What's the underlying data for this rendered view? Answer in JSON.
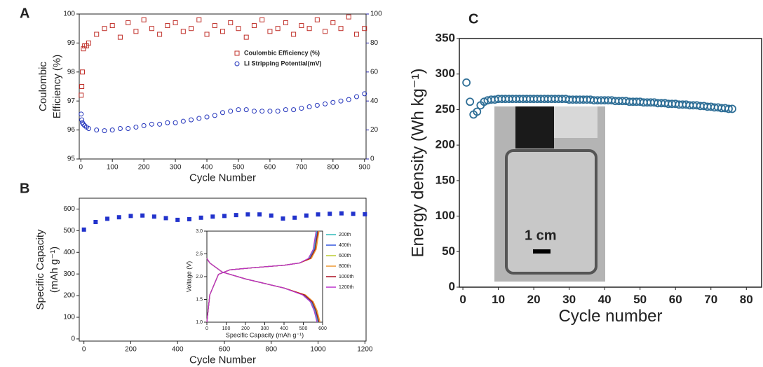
{
  "chart_data": [
    {
      "type": "scatter",
      "panel": "A",
      "x_label": "Cycle Number",
      "y_label": [
        "Coulombic",
        "Efficiency (%)"
      ],
      "xlim": [
        -5,
        905
      ],
      "xticks": [
        0,
        100,
        200,
        300,
        400,
        500,
        600,
        700,
        800,
        900
      ],
      "ylim": [
        95,
        100
      ],
      "yticks": [
        95,
        96,
        97,
        98,
        99,
        100
      ],
      "y2lim": [
        0,
        100
      ],
      "y2ticks": [
        0,
        20,
        40,
        60,
        80,
        100
      ],
      "y2color": "#2222aa",
      "x": [
        1,
        3,
        5,
        8,
        12,
        18,
        25,
        50,
        75,
        100,
        125,
        150,
        175,
        200,
        225,
        250,
        275,
        300,
        325,
        350,
        375,
        400,
        425,
        450,
        475,
        500,
        525,
        550,
        575,
        600,
        625,
        650,
        675,
        700,
        725,
        750,
        775,
        800,
        825,
        850,
        875,
        900
      ],
      "series": [
        {
          "name": "Coulombic Efficiency (%)",
          "color": "#c0302a",
          "marker": "square",
          "values": [
            97.2,
            97.5,
            98.0,
            98.8,
            98.9,
            98.9,
            99.0,
            99.3,
            99.5,
            99.6,
            99.2,
            99.7,
            99.4,
            99.8,
            99.5,
            99.3,
            99.6,
            99.7,
            99.4,
            99.5,
            99.8,
            99.3,
            99.6,
            99.4,
            99.7,
            99.5,
            99.2,
            99.6,
            99.8,
            99.4,
            99.5,
            99.7,
            99.3,
            99.6,
            99.5,
            99.8,
            99.4,
            99.7,
            99.5,
            99.9,
            99.3,
            99.5
          ]
        },
        {
          "name": "Li Stripping Potential(mV)",
          "color": "#2233bb",
          "marker": "circle",
          "axis": "y2",
          "values": [
            31,
            27,
            25,
            24,
            23,
            22,
            21,
            20,
            19.5,
            20,
            21,
            21,
            22,
            23,
            24,
            24,
            25,
            25,
            26,
            27,
            28,
            29,
            30,
            32,
            33,
            34,
            34,
            33,
            33,
            33,
            33,
            34,
            34,
            35,
            36,
            37,
            38,
            39,
            40,
            41,
            43,
            45
          ]
        }
      ]
    },
    {
      "type": "scatter",
      "panel": "B",
      "x_label": "Cycle Number",
      "y_label": [
        "Specific Capacity",
        "(mAh g⁻¹)"
      ],
      "xlim": [
        -20,
        1205
      ],
      "xticks": [
        0,
        200,
        400,
        600,
        800,
        1000,
        1200
      ],
      "ylim": [
        -10,
        650
      ],
      "yticks": [
        0,
        100,
        200,
        300,
        400,
        500,
        600
      ],
      "x": [
        0,
        50,
        100,
        150,
        200,
        250,
        300,
        350,
        400,
        450,
        500,
        550,
        600,
        650,
        700,
        750,
        800,
        850,
        900,
        950,
        1000,
        1050,
        1100,
        1150,
        1200
      ],
      "series": [
        {
          "color": "#2233cc",
          "marker": "square",
          "filled": true,
          "values": [
            505,
            540,
            555,
            562,
            568,
            570,
            565,
            558,
            550,
            553,
            560,
            565,
            568,
            572,
            575,
            575,
            570,
            556,
            560,
            570,
            575,
            578,
            580,
            578,
            576
          ]
        }
      ]
    },
    {
      "type": "line",
      "x_label": "Specific Capacity (mAh g⁻¹)",
      "y_label": [
        "Voltage (V)"
      ],
      "xlim": [
        0,
        600
      ],
      "xticks": [
        0,
        100,
        200,
        300,
        400,
        500,
        600
      ],
      "ylim": [
        1,
        3
      ],
      "yticks": [
        {
          "value": 1,
          "label": "1.0"
        },
        1.5,
        {
          "value": 2,
          "label": "2.0"
        },
        2.5,
        {
          "value": 3,
          "label": "3.0"
        }
      ],
      "series": [
        {
          "name": "200th",
          "color": "#33bbbb",
          "discharge": {
            "x": [
              0,
              15,
              80,
              200,
              300,
              400,
              500,
              540,
              560,
              575
            ],
            "values": [
              2.4,
              2.3,
              2.1,
              1.95,
              1.85,
              1.75,
              1.6,
              1.45,
              1.25,
              1.0
            ]
          },
          "charge": {
            "x": [
              0,
              15,
              60,
              120,
              250,
              400,
              480,
              530,
              555,
              570
            ],
            "values": [
              1.0,
              1.6,
              2.05,
              2.15,
              2.2,
              2.25,
              2.3,
              2.4,
              2.6,
              3.0
            ]
          }
        },
        {
          "name": "400th",
          "color": "#3355dd",
          "discharge": {
            "x": [
              0,
              15,
              80,
              200,
              300,
              400,
              504,
              544,
              564,
              579
            ],
            "values": [
              2.4,
              2.3,
              2.1,
              1.95,
              1.85,
              1.75,
              1.6,
              1.45,
              1.25,
              1.0
            ]
          },
          "charge": {
            "x": [
              0,
              15,
              60,
              120,
              250,
              400,
              480,
              534,
              559,
              574
            ],
            "values": [
              1.0,
              1.6,
              2.05,
              2.15,
              2.2,
              2.25,
              2.3,
              2.4,
              2.6,
              3.0
            ]
          }
        },
        {
          "name": "600th",
          "color": "#bbcc33",
          "discharge": {
            "x": [
              0,
              15,
              80,
              200,
              300,
              400,
              508,
              548,
              568,
              583
            ],
            "values": [
              2.4,
              2.3,
              2.1,
              1.95,
              1.85,
              1.75,
              1.6,
              1.45,
              1.25,
              1.0
            ]
          },
          "charge": {
            "x": [
              0,
              15,
              60,
              120,
              250,
              400,
              480,
              538,
              563,
              578
            ],
            "values": [
              1.0,
              1.6,
              2.05,
              2.15,
              2.2,
              2.25,
              2.3,
              2.4,
              2.6,
              3.0
            ]
          }
        },
        {
          "name": "800th",
          "color": "#ee9933",
          "discharge": {
            "x": [
              0,
              15,
              80,
              200,
              300,
              400,
              512,
              552,
              572,
              587
            ],
            "values": [
              2.4,
              2.3,
              2.1,
              1.95,
              1.85,
              1.75,
              1.6,
              1.45,
              1.25,
              1.0
            ]
          },
          "charge": {
            "x": [
              0,
              15,
              60,
              120,
              250,
              400,
              480,
              542,
              567,
              582
            ],
            "values": [
              1.0,
              1.6,
              2.05,
              2.15,
              2.2,
              2.25,
              2.3,
              2.4,
              2.6,
              3.0
            ]
          }
        },
        {
          "name": "1000th",
          "color": "#aa1122",
          "discharge": {
            "x": [
              0,
              15,
              80,
              200,
              300,
              400,
              506,
              546,
              566,
              581
            ],
            "values": [
              2.4,
              2.3,
              2.1,
              1.95,
              1.85,
              1.75,
              1.6,
              1.45,
              1.25,
              1.0
            ]
          },
          "charge": {
            "x": [
              0,
              15,
              60,
              120,
              250,
              400,
              480,
              536,
              561,
              576
            ],
            "values": [
              1.0,
              1.6,
              2.05,
              2.15,
              2.2,
              2.25,
              2.3,
              2.4,
              2.6,
              3.0
            ]
          }
        },
        {
          "name": "1200th",
          "color": "#bb33cc",
          "discharge": {
            "x": [
              0,
              15,
              80,
              200,
              300,
              400,
              496,
              536,
              556,
              571
            ],
            "values": [
              2.4,
              2.3,
              2.1,
              1.95,
              1.85,
              1.75,
              1.6,
              1.45,
              1.25,
              1.0
            ]
          },
          "charge": {
            "x": [
              0,
              15,
              60,
              120,
              250,
              400,
              480,
              526,
              551,
              566
            ],
            "values": [
              1.0,
              1.6,
              2.05,
              2.15,
              2.2,
              2.25,
              2.3,
              2.4,
              2.6,
              3.0
            ]
          }
        }
      ]
    },
    {
      "type": "scatter",
      "panel": "C",
      "x_label": "Cycle number",
      "y_label": [
        "Energy density (Wh kg⁻¹)"
      ],
      "photo_label": "1 cm",
      "xlim": [
        -1,
        84.3
      ],
      "xticks": [
        0,
        10,
        20,
        30,
        40,
        50,
        60,
        70,
        80
      ],
      "ylim": [
        0,
        350
      ],
      "yticks": [
        0,
        50,
        100,
        150,
        200,
        250,
        300,
        350
      ],
      "x": [
        1,
        2,
        3,
        4,
        5,
        6,
        7,
        8,
        9,
        10,
        11,
        12,
        13,
        14,
        15,
        16,
        17,
        18,
        19,
        20,
        21,
        22,
        23,
        24,
        25,
        26,
        27,
        28,
        29,
        30,
        31,
        32,
        33,
        34,
        35,
        36,
        37,
        38,
        39,
        40,
        41,
        42,
        43,
        44,
        45,
        46,
        47,
        48,
        49,
        50,
        51,
        52,
        53,
        54,
        55,
        56,
        57,
        58,
        59,
        60,
        61,
        62,
        63,
        64,
        65,
        66,
        67,
        68,
        69,
        70,
        71,
        72,
        73,
        74,
        75,
        76
      ],
      "series": [
        {
          "color": "#2e6e96",
          "marker": "circle",
          "values": [
            288,
            261,
            243,
            247,
            256,
            261,
            263,
            264,
            264,
            265,
            265,
            265,
            265,
            265,
            265,
            265,
            265,
            265,
            265,
            265,
            265,
            265,
            265,
            265,
            265,
            265,
            265,
            265,
            265,
            264,
            264,
            264,
            264,
            264,
            264,
            264,
            263,
            263,
            263,
            263,
            263,
            263,
            262,
            262,
            262,
            262,
            261,
            261,
            261,
            261,
            260,
            260,
            260,
            260,
            259,
            259,
            259,
            258,
            258,
            258,
            257,
            257,
            257,
            256,
            256,
            256,
            255,
            255,
            254,
            254,
            253,
            253,
            252,
            252,
            251,
            251
          ]
        }
      ]
    }
  ]
}
